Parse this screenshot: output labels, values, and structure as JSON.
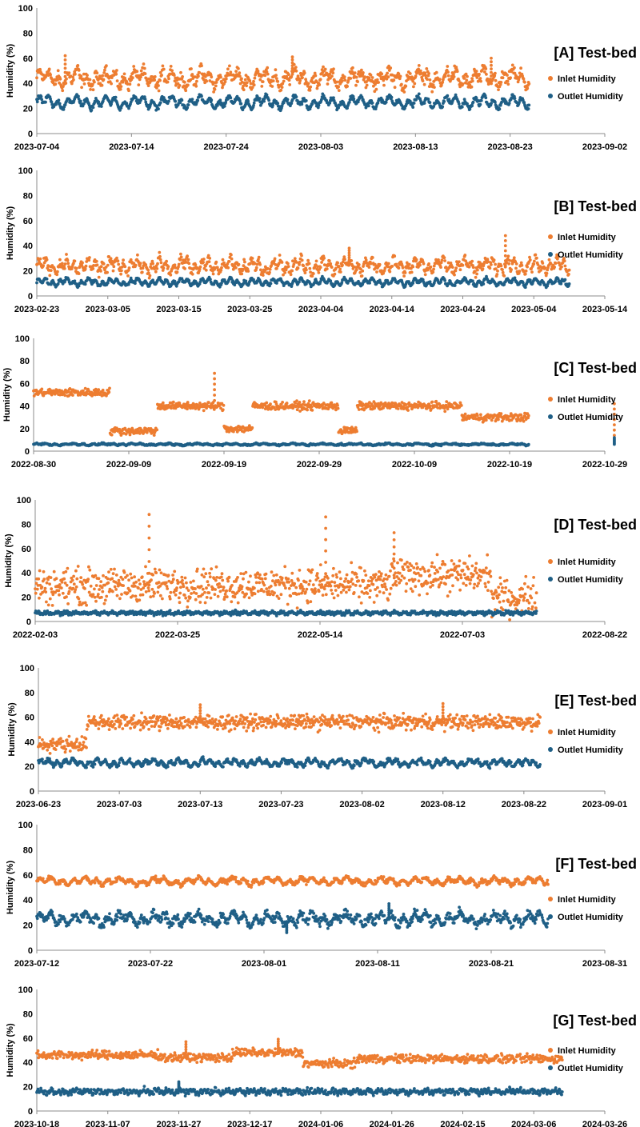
{
  "colors": {
    "inlet": "#ED7D31",
    "outlet": "#1F5F86",
    "axis": "#8c8c8c"
  },
  "chart_data": [
    {
      "type": "scatter",
      "title": "[A] Test-bed",
      "ylabel": "Humidity (%)",
      "ylim": [
        0,
        100
      ],
      "yticks": [
        0,
        20,
        40,
        60,
        80,
        100
      ],
      "xticks": [
        "2023-07-04",
        "2023-07-14",
        "2023-07-24",
        "2023-08-03",
        "2023-08-13",
        "2023-08-23",
        "2023-09-02"
      ],
      "x_start": "2023-07-04",
      "x_end": "2023-09-02",
      "data_end": "2023-08-25",
      "legend": {
        "position": "right",
        "inlet": "Inlet Humidity",
        "outlet": "Outlet Humidity"
      },
      "series": [
        {
          "name": "Inlet Humidity",
          "mean": 44,
          "amp": 7,
          "noise": 4,
          "spikes": [
            [
              3,
              62
            ],
            [
              27,
              61
            ],
            [
              48,
              60
            ]
          ]
        },
        {
          "name": "Outlet Humidity",
          "mean": 25,
          "amp": 5,
          "noise": 1.5,
          "spikes": []
        }
      ]
    },
    {
      "type": "scatter",
      "title": "[B] Test-bed",
      "ylabel": "Humidity (%)",
      "ylim": [
        0,
        100
      ],
      "yticks": [
        0,
        20,
        40,
        60,
        80,
        100
      ],
      "xticks": [
        "2023-02-23",
        "2023-03-05",
        "2023-03-15",
        "2023-03-25",
        "2023-04-04",
        "2023-04-14",
        "2023-04-24",
        "2023-05-04",
        "2023-05-14"
      ],
      "x_start": "2023-02-23",
      "x_end": "2023-05-14",
      "data_end": "2023-05-09",
      "legend": {
        "position": "right",
        "inlet": "Inlet Humidity",
        "outlet": "Outlet Humidity"
      },
      "series": [
        {
          "name": "Inlet Humidity",
          "mean": 24,
          "amp": 6,
          "noise": 3,
          "spikes": [
            [
              44,
              38
            ],
            [
              66,
              48
            ]
          ]
        },
        {
          "name": "Outlet Humidity",
          "mean": 11,
          "amp": 3,
          "noise": 1,
          "spikes": []
        }
      ]
    },
    {
      "type": "scatter",
      "title": "[C] Test-bed",
      "ylabel": "Humidity (%)",
      "ylim": [
        0,
        100
      ],
      "yticks": [
        0,
        20,
        40,
        60,
        80,
        100
      ],
      "xticks": [
        "2022-08-30",
        "2022-09-09",
        "2022-09-19",
        "2022-09-29",
        "2022-10-09",
        "2022-10-19",
        "2022-10-29"
      ],
      "x_start": "2022-08-30",
      "x_end": "2022-10-29",
      "data_end": "2022-10-21",
      "legend": {
        "position": "right",
        "inlet": "Inlet Humidity",
        "outlet": "Outlet Humidity"
      },
      "series": [
        {
          "name": "Inlet Humidity",
          "segments": [
            [
              0,
              8,
              52
            ],
            [
              8,
              13,
              18
            ],
            [
              13,
              20,
              40
            ],
            [
              20,
              23,
              20
            ],
            [
              23,
              32,
              40
            ],
            [
              32,
              34,
              18
            ],
            [
              34,
              45,
              40
            ],
            [
              45,
              58,
              30
            ],
            [
              58,
              62,
              14
            ]
          ],
          "noise": 3,
          "spikes": [
            [
              19,
              69
            ],
            [
              61,
              42
            ]
          ]
        },
        {
          "name": "Outlet Humidity",
          "mean": 6,
          "amp": 0.8,
          "noise": 0.6,
          "spikes": [
            [
              61,
              12
            ]
          ]
        }
      ]
    },
    {
      "type": "scatter",
      "title": "[D] Test-bed",
      "ylabel": "Humidity (%)",
      "ylim": [
        0,
        100
      ],
      "yticks": [
        0,
        20,
        40,
        60,
        80,
        100
      ],
      "xticks": [
        "2022-02-03",
        "2022-03-25",
        "2022-05-14",
        "2022-07-03",
        "2022-08-22"
      ],
      "x_start": "2022-02-03",
      "x_end": "2022-08-22",
      "data_end": "2022-07-29",
      "legend": {
        "position": "right",
        "inlet": "Inlet Humidity",
        "outlet": "Outlet Humidity"
      },
      "series": [
        {
          "name": "Inlet Humidity",
          "segments": [
            [
              0,
              30,
              29
            ],
            [
              30,
              125,
              30
            ],
            [
              125,
              160,
              38
            ],
            [
              160,
              176,
              20
            ]
          ],
          "noise": 12,
          "spikes": [
            [
              40,
              88
            ],
            [
              102,
              86
            ],
            [
              126,
              73
            ]
          ]
        },
        {
          "name": "Outlet Humidity",
          "mean": 7,
          "amp": 1.5,
          "noise": 0.8,
          "spikes": []
        }
      ]
    },
    {
      "type": "scatter",
      "title": "[E] Test-bed",
      "ylabel": "Humidity (%)",
      "ylim": [
        0,
        100
      ],
      "yticks": [
        0,
        20,
        40,
        60,
        80,
        100
      ],
      "xticks": [
        "2023-06-23",
        "2023-07-03",
        "2023-07-13",
        "2023-07-23",
        "2023-08-02",
        "2023-08-12",
        "2023-08-22",
        "2023-09-01"
      ],
      "x_start": "2023-06-23",
      "x_end": "2023-09-01",
      "data_end": "2023-08-24",
      "legend": {
        "position": "right",
        "inlet": "Inlet Humidity",
        "outlet": "Outlet Humidity"
      },
      "series": [
        {
          "name": "Inlet Humidity",
          "segments": [
            [
              0,
              6,
              38
            ],
            [
              6,
              62,
              56
            ]
          ],
          "noise": 5,
          "spikes": [
            [
              20,
              70
            ],
            [
              50,
              71
            ]
          ]
        },
        {
          "name": "Outlet Humidity",
          "mean": 23,
          "amp": 3,
          "noise": 1.5,
          "spikes": []
        }
      ]
    },
    {
      "type": "scatter",
      "title": "[F] Test-bed",
      "ylabel": "Humidity (%)",
      "ylim": [
        0,
        100
      ],
      "yticks": [
        0,
        20,
        40,
        60,
        80,
        100
      ],
      "xticks": [
        "2023-07-12",
        "2023-07-22",
        "2023-08-01",
        "2023-08-11",
        "2023-08-21",
        "2023-08-31"
      ],
      "x_start": "2023-07-12",
      "x_end": "2023-08-31",
      "data_end": "2023-08-26",
      "legend": {
        "position": "right",
        "inlet": "Inlet Humidity",
        "outlet": "Outlet Humidity"
      },
      "series": [
        {
          "name": "Inlet Humidity",
          "mean": 55,
          "amp": 3,
          "noise": 1.5,
          "spikes": []
        },
        {
          "name": "Outlet Humidity",
          "mean": 25,
          "amp": 5,
          "noise": 3,
          "spikes": [
            [
              22,
              14
            ],
            [
              31,
              37
            ]
          ]
        }
      ]
    },
    {
      "type": "scatter",
      "title": "[G] Test-bed",
      "ylabel": "Humidity (%)",
      "ylim": [
        0,
        100
      ],
      "yticks": [
        0,
        20,
        40,
        60,
        80,
        100
      ],
      "xticks": [
        "2023-10-18",
        "2023-11-07",
        "2023-11-27",
        "2023-12-17",
        "2024-01-06",
        "2024-01-26",
        "2024-02-15",
        "2024-03-06",
        "2024-03-26"
      ],
      "x_start": "2023-10-18",
      "x_end": "2024-03-26",
      "data_end": "2024-03-14",
      "legend": {
        "position": "right",
        "inlet": "Inlet Humidity",
        "outlet": "Outlet Humidity"
      },
      "series": [
        {
          "name": "Inlet Humidity",
          "segments": [
            [
              0,
              35,
              46
            ],
            [
              35,
              55,
              44
            ],
            [
              55,
              75,
              48
            ],
            [
              75,
              90,
              39
            ],
            [
              90,
              148,
              43
            ]
          ],
          "noise": 3,
          "spikes": [
            [
              42,
              57
            ],
            [
              68,
              59
            ]
          ]
        },
        {
          "name": "Outlet Humidity",
          "mean": 16,
          "amp": 2,
          "noise": 1.5,
          "spikes": [
            [
              40,
              24
            ]
          ]
        }
      ]
    }
  ]
}
